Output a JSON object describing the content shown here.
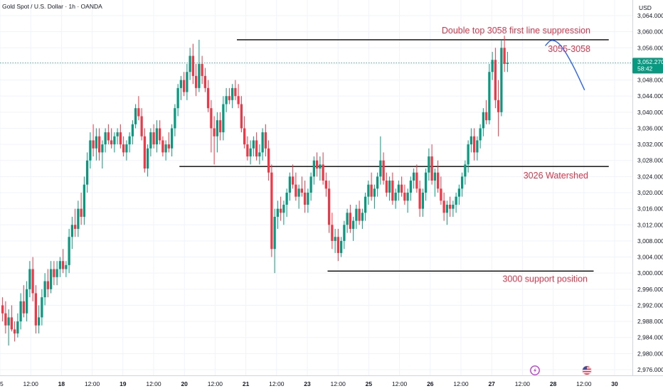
{
  "chart_data": {
    "type": "candlestick",
    "title": "Gold Spot / U.S. Dollar · 1h · OANDA",
    "currency": "USD",
    "price_axis": {
      "min": 2974,
      "max": 3066,
      "ticks": [
        3064,
        3060,
        3056,
        3052,
        3048,
        3044,
        3040,
        3036,
        3032,
        3028,
        3024,
        3020,
        3016,
        3012,
        3008,
        3004,
        3000,
        2996,
        2992,
        2988,
        2984,
        2980,
        2976
      ],
      "tick_labels": [
        "3,064.000",
        "3,060.000",
        "3,056.000",
        "3,052.000",
        "3,048.000",
        "3,044.000",
        "3,040.000",
        "3,036.000",
        "3,032.000",
        "3,028.000",
        "3,024.000",
        "3,020.000",
        "3,016.000",
        "3,012.000",
        "3,008.000",
        "3,004.000",
        "3,000.000",
        "2,996.000",
        "2,992.000",
        "2,988.000",
        "2,984.000",
        "2,980.000",
        "2,976.000"
      ]
    },
    "time_axis": {
      "labels": [
        "5",
        "12:00",
        "18",
        "12:00",
        "19",
        "12:00",
        "20",
        "12:00",
        "21",
        "12:00",
        "23",
        "12:00",
        "25",
        "12:00",
        "26",
        "12:00",
        "27",
        "12:00",
        "28",
        "12:00",
        "30"
      ],
      "bold_labels": [
        "18",
        "19",
        "20",
        "21",
        "23",
        "25",
        "26",
        "27",
        "28",
        "30"
      ]
    },
    "last_price": {
      "value": 3052.27,
      "label": "3,052.270",
      "countdown": "58:42",
      "color": "#089981"
    },
    "levels": [
      {
        "price": 3058.0,
        "start_bar": 78,
        "end_bar": 201,
        "label": "Double top 3058 first line suppression",
        "sublabel": "3055-3058"
      },
      {
        "price": 3026.5,
        "start_bar": 59,
        "end_bar": 201,
        "label": "3026 Watershed"
      },
      {
        "price": 3000.5,
        "start_bar": 108,
        "end_bar": 196,
        "label": "3000 support position"
      }
    ],
    "projection": [
      [
        180,
        3056.5
      ],
      [
        182,
        3058.2
      ],
      [
        185,
        3057.0
      ],
      [
        189,
        3052.0
      ],
      [
        193,
        3045.5
      ]
    ],
    "colors": {
      "up": "#089981",
      "down": "#f23645",
      "level": "#000000",
      "projection": "#2962ff",
      "annotation": "#e0344a"
    },
    "event_markers": [
      "lightning-icon",
      "us-flag-icon"
    ],
    "candles": [
      [
        2992.0,
        2994.0,
        2988.0,
        2990.0
      ],
      [
        2990.0,
        2993.0,
        2985.0,
        2987.0
      ],
      [
        2987.0,
        2991.0,
        2982.0,
        2989.0
      ],
      [
        2989.0,
        2992.0,
        2985.5,
        2986.0
      ],
      [
        2986.0,
        2988.0,
        2983.0,
        2985.0
      ],
      [
        2985.0,
        2990.0,
        2984.0,
        2988.0
      ],
      [
        2988.0,
        2995.0,
        2986.0,
        2993.0
      ],
      [
        2993.0,
        2997.0,
        2989.0,
        2990.0
      ],
      [
        2990.0,
        2998.0,
        2988.0,
        2996.0
      ],
      [
        2996.0,
        3003.0,
        2994.0,
        3001.0
      ],
      [
        3001.0,
        3004.0,
        2993.0,
        2995.0
      ],
      [
        2995.0,
        2997.0,
        2985.0,
        2987.0
      ],
      [
        2987.0,
        2992.0,
        2985.0,
        2989.0
      ],
      [
        2989.0,
        2996.0,
        2987.0,
        2994.0
      ],
      [
        2994.0,
        3000.0,
        2992.0,
        2998.0
      ],
      [
        2998.0,
        3001.0,
        2994.0,
        2996.0
      ],
      [
        2996.0,
        3003.0,
        2995.0,
        3001.0
      ],
      [
        3001.0,
        3003.0,
        2997.0,
        2999.0
      ],
      [
        2999.0,
        3003.0,
        2997.0,
        3001.0
      ],
      [
        3001.0,
        3004.0,
        2999.0,
        3003.0
      ],
      [
        3003.0,
        3006.0,
        3000.0,
        3001.0
      ],
      [
        3001.0,
        3003.0,
        2999.0,
        3002.0
      ],
      [
        3002.0,
        3011.0,
        3000.0,
        3009.0
      ],
      [
        3009.0,
        3014.0,
        3006.0,
        3012.0
      ],
      [
        3012.0,
        3016.0,
        3009.0,
        3011.0
      ],
      [
        3011.0,
        3018.0,
        3009.0,
        3016.0
      ],
      [
        3016.0,
        3020.0,
        3012.0,
        3014.0
      ],
      [
        3014.0,
        3024.0,
        3012.0,
        3022.0
      ],
      [
        3022.0,
        3030.0,
        3020.0,
        3028.0
      ],
      [
        3028.0,
        3035.0,
        3026.0,
        3033.0
      ],
      [
        3033.0,
        3037.0,
        3029.0,
        3031.0
      ],
      [
        3031.0,
        3036.0,
        3028.0,
        3034.0
      ],
      [
        3034.0,
        3036.0,
        3028.0,
        3030.0
      ],
      [
        3030.0,
        3033.0,
        3026.0,
        3032.0
      ],
      [
        3032.0,
        3036.0,
        3030.0,
        3035.0
      ],
      [
        3035.0,
        3037.0,
        3032.0,
        3033.0
      ],
      [
        3033.0,
        3036.0,
        3031.0,
        3032.0
      ],
      [
        3032.0,
        3035.0,
        3030.0,
        3034.0
      ],
      [
        3034.0,
        3036.0,
        3032.0,
        3035.0
      ],
      [
        3035.0,
        3037.0,
        3031.0,
        3032.0
      ],
      [
        3032.0,
        3034.0,
        3029.0,
        3030.0
      ],
      [
        3030.0,
        3033.0,
        3028.0,
        3032.0
      ],
      [
        3032.0,
        3035.0,
        3030.0,
        3034.0
      ],
      [
        3034.0,
        3038.0,
        3032.0,
        3037.0
      ],
      [
        3037.0,
        3042.0,
        3036.0,
        3041.0
      ],
      [
        3041.0,
        3044.0,
        3038.0,
        3039.0
      ],
      [
        3039.0,
        3041.0,
        3033.0,
        3034.0
      ],
      [
        3034.0,
        3036.0,
        3025.0,
        3026.0
      ],
      [
        3026.0,
        3032.0,
        3024.0,
        3031.0
      ],
      [
        3031.0,
        3036.0,
        3029.0,
        3035.0
      ],
      [
        3035.0,
        3037.0,
        3031.0,
        3032.0
      ],
      [
        3032.0,
        3038.0,
        3030.0,
        3036.0
      ],
      [
        3036.0,
        3038.0,
        3032.0,
        3033.0
      ],
      [
        3033.0,
        3034.0,
        3029.0,
        3030.0
      ],
      [
        3030.0,
        3033.0,
        3028.0,
        3032.0
      ],
      [
        3032.0,
        3035.0,
        3030.0,
        3031.0
      ],
      [
        3031.0,
        3037.0,
        3029.0,
        3036.0
      ],
      [
        3036.0,
        3042.0,
        3034.0,
        3041.0
      ],
      [
        3041.0,
        3047.0,
        3039.0,
        3046.0
      ],
      [
        3046.0,
        3049.0,
        3043.0,
        3048.0
      ],
      [
        3048.0,
        3050.0,
        3044.0,
        3045.0
      ],
      [
        3045.0,
        3052.0,
        3043.0,
        3050.0
      ],
      [
        3050.0,
        3056.0,
        3048.0,
        3054.0
      ],
      [
        3054.0,
        3057.0,
        3047.0,
        3049.0
      ],
      [
        3049.0,
        3052.0,
        3044.0,
        3046.0
      ],
      [
        3046.0,
        3058.0,
        3045.0,
        3052.0
      ],
      [
        3052.0,
        3054.0,
        3047.0,
        3049.0
      ],
      [
        3049.0,
        3051.0,
        3045.0,
        3046.0
      ],
      [
        3046.0,
        3048.0,
        3040.0,
        3041.0
      ],
      [
        3041.0,
        3043.0,
        3030.0,
        3036.0
      ],
      [
        3036.0,
        3039.0,
        3027.0,
        3034.0
      ],
      [
        3034.0,
        3040.0,
        3030.0,
        3038.0
      ],
      [
        3038.0,
        3040.0,
        3033.0,
        3035.0
      ],
      [
        3035.0,
        3044.0,
        3033.0,
        3042.0
      ],
      [
        3042.0,
        3046.0,
        3040.0,
        3044.0
      ],
      [
        3044.0,
        3046.0,
        3042.0,
        3043.0
      ],
      [
        3043.0,
        3047.0,
        3041.0,
        3046.0
      ],
      [
        3046.0,
        3048.0,
        3043.0,
        3044.0
      ],
      [
        3044.0,
        3047.0,
        3041.0,
        3042.0
      ],
      [
        3042.0,
        3044.0,
        3035.0,
        3036.0
      ],
      [
        3036.0,
        3039.0,
        3031.0,
        3032.0
      ],
      [
        3032.0,
        3034.0,
        3028.0,
        3029.0
      ],
      [
        3029.0,
        3033.0,
        3027.0,
        3031.0
      ],
      [
        3031.0,
        3034.0,
        3029.0,
        3033.0
      ],
      [
        3033.0,
        3035.0,
        3028.0,
        3029.0
      ],
      [
        3029.0,
        3032.0,
        3027.0,
        3030.0
      ],
      [
        3030.0,
        3036.0,
        3028.0,
        3035.0
      ],
      [
        3035.0,
        3037.0,
        3029.0,
        3031.0
      ],
      [
        3031.0,
        3033.0,
        3023.0,
        3025.0
      ],
      [
        3025.0,
        3027.0,
        3004.0,
        3006.0
      ],
      [
        3006.0,
        3016.0,
        3000.0,
        3014.0
      ],
      [
        3014.0,
        3018.0,
        3011.0,
        3016.0
      ],
      [
        3016.0,
        3019.0,
        3013.0,
        3015.0
      ],
      [
        3015.0,
        3018.0,
        3012.0,
        3017.0
      ],
      [
        3017.0,
        3021.0,
        3014.0,
        3020.0
      ],
      [
        3020.0,
        3025.0,
        3018.0,
        3024.0
      ],
      [
        3024.0,
        3027.0,
        3021.0,
        3022.0
      ],
      [
        3022.0,
        3025.0,
        3018.0,
        3019.0
      ],
      [
        3019.0,
        3022.0,
        3016.0,
        3021.0
      ],
      [
        3021.0,
        3024.0,
        3019.0,
        3020.0
      ],
      [
        3020.0,
        3023.0,
        3015.0,
        3017.0
      ],
      [
        3017.0,
        3021.0,
        3015.0,
        3020.0
      ],
      [
        3020.0,
        3025.0,
        3018.0,
        3024.0
      ],
      [
        3024.0,
        3029.0,
        3022.0,
        3028.0
      ],
      [
        3028.0,
        3030.0,
        3024.0,
        3026.0
      ],
      [
        3026.0,
        3029.0,
        3023.0,
        3027.0
      ],
      [
        3027.0,
        3030.0,
        3022.0,
        3023.0
      ],
      [
        3023.0,
        3025.0,
        3019.0,
        3021.0
      ],
      [
        3021.0,
        3023.0,
        3010.0,
        3012.0
      ],
      [
        3012.0,
        3015.0,
        3006.0,
        3008.0
      ],
      [
        3008.0,
        3011.0,
        3005.0,
        3009.0
      ],
      [
        3009.0,
        3011.0,
        3003.0,
        3005.0
      ],
      [
        3005.0,
        3009.0,
        3004.0,
        3008.0
      ],
      [
        3008.0,
        3013.0,
        3006.0,
        3012.0
      ],
      [
        3012.0,
        3016.0,
        3010.0,
        3015.0
      ],
      [
        3015.0,
        3017.0,
        3010.0,
        3011.0
      ],
      [
        3011.0,
        3014.0,
        3008.0,
        3013.0
      ],
      [
        3013.0,
        3017.0,
        3011.0,
        3016.0
      ],
      [
        3016.0,
        3018.0,
        3012.0,
        3013.0
      ],
      [
        3013.0,
        3016.0,
        3011.0,
        3015.0
      ],
      [
        3015.0,
        3020.0,
        3013.0,
        3019.0
      ],
      [
        3019.0,
        3023.0,
        3017.0,
        3022.0
      ],
      [
        3022.0,
        3025.0,
        3018.0,
        3019.0
      ],
      [
        3019.0,
        3022.0,
        3016.0,
        3021.0
      ],
      [
        3021.0,
        3025.0,
        3019.0,
        3024.0
      ],
      [
        3024.0,
        3034.0,
        3022.0,
        3028.0
      ],
      [
        3028.0,
        3030.0,
        3022.0,
        3023.0
      ],
      [
        3023.0,
        3025.0,
        3019.0,
        3020.0
      ],
      [
        3020.0,
        3024.0,
        3018.0,
        3023.0
      ],
      [
        3023.0,
        3025.0,
        3017.0,
        3018.0
      ],
      [
        3018.0,
        3021.0,
        3016.0,
        3020.0
      ],
      [
        3020.0,
        3023.0,
        3018.0,
        3022.0
      ],
      [
        3022.0,
        3024.0,
        3019.0,
        3020.0
      ],
      [
        3020.0,
        3022.0,
        3017.0,
        3018.0
      ],
      [
        3018.0,
        3021.0,
        3015.0,
        3020.0
      ],
      [
        3020.0,
        3024.0,
        3018.0,
        3023.0
      ],
      [
        3023.0,
        3026.0,
        3021.0,
        3025.0
      ],
      [
        3025.0,
        3027.0,
        3020.0,
        3021.0
      ],
      [
        3021.0,
        3023.0,
        3014.0,
        3016.0
      ],
      [
        3016.0,
        3021.0,
        3014.0,
        3020.0
      ],
      [
        3020.0,
        3026.0,
        3018.0,
        3025.0
      ],
      [
        3025.0,
        3031.0,
        3023.0,
        3029.0
      ],
      [
        3029.0,
        3032.0,
        3022.0,
        3023.0
      ],
      [
        3023.0,
        3026.0,
        3019.0,
        3025.0
      ],
      [
        3025.0,
        3028.0,
        3020.0,
        3021.0
      ],
      [
        3021.0,
        3024.0,
        3017.0,
        3018.0
      ],
      [
        3018.0,
        3020.0,
        3013.0,
        3015.0
      ],
      [
        3015.0,
        3018.0,
        3012.0,
        3017.0
      ],
      [
        3017.0,
        3019.0,
        3014.0,
        3016.0
      ],
      [
        3016.0,
        3018.0,
        3014.0,
        3017.0
      ],
      [
        3017.0,
        3020.0,
        3015.0,
        3019.0
      ],
      [
        3019.0,
        3022.0,
        3017.0,
        3021.0
      ],
      [
        3021.0,
        3025.0,
        3019.0,
        3024.0
      ],
      [
        3024.0,
        3028.0,
        3022.0,
        3027.0
      ],
      [
        3027.0,
        3033.0,
        3025.0,
        3032.0
      ],
      [
        3032.0,
        3036.0,
        3030.0,
        3034.0
      ],
      [
        3034.0,
        3036.0,
        3028.0,
        3030.0
      ],
      [
        3030.0,
        3034.0,
        3028.0,
        3033.0
      ],
      [
        3033.0,
        3037.0,
        3031.0,
        3036.0
      ],
      [
        3036.0,
        3041.0,
        3034.0,
        3040.0
      ],
      [
        3040.0,
        3043.0,
        3037.0,
        3038.0
      ],
      [
        3038.0,
        3052.0,
        3037.0,
        3050.0
      ],
      [
        3050.0,
        3055.0,
        3048.0,
        3053.0
      ],
      [
        3053.0,
        3056.0,
        3041.0,
        3043.0
      ],
      [
        3043.0,
        3048.0,
        3034.0,
        3040.0
      ],
      [
        3040.0,
        3058.0,
        3039.0,
        3056.0
      ],
      [
        3056.0,
        3059.0,
        3050.0,
        3052.0
      ],
      [
        3052.0,
        3055.0,
        3050.0,
        3052.27
      ]
    ]
  }
}
